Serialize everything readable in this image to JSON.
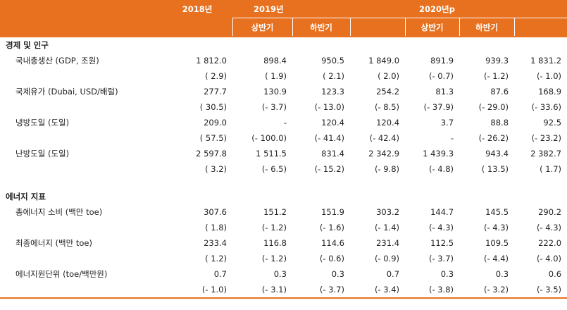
{
  "header": {
    "col_2018": "2018년",
    "col_2019": "2019년",
    "col_2020": "2020년p",
    "sub": [
      "상반기",
      "하반기",
      "상반기",
      "하반기"
    ]
  },
  "sections": [
    {
      "title": "경제 및 인구",
      "rows": [
        {
          "label": "국내총생산 (GDP, 조원)",
          "values": [
            "1 812.0",
            "898.4",
            "950.5",
            "1 849.0",
            "891.9",
            "939.3",
            "1 831.2"
          ],
          "changes": [
            "( 2.9)",
            "( 1.9)",
            "( 2.1)",
            "( 2.0)",
            "(- 0.7)",
            "(- 1.2)",
            "(- 1.0)"
          ]
        },
        {
          "label": "국제유가 (Dubai, USD/배럴)",
          "values": [
            "277.7",
            "130.9",
            "123.3",
            "254.2",
            "81.3",
            "87.6",
            "168.9"
          ],
          "changes": [
            "( 30.5)",
            "(- 3.7)",
            "(- 13.0)",
            "(- 8.5)",
            "(- 37.9)",
            "(- 29.0)",
            "(- 33.6)"
          ]
        },
        {
          "label": "냉방도일 (도일)",
          "values": [
            "209.0",
            "-",
            "120.4",
            "120.4",
            "3.7",
            "88.8",
            "92.5"
          ],
          "changes": [
            "( 57.5)",
            "(- 100.0)",
            "(- 41.4)",
            "(- 42.4)",
            "-",
            "(- 26.2)",
            "(- 23.2)"
          ]
        },
        {
          "label": "난방도일 (도일)",
          "values": [
            "2 597.8",
            "1 511.5",
            "831.4",
            "2 342.9",
            "1 439.3",
            "943.4",
            "2 382.7"
          ],
          "changes": [
            "( 3.2)",
            "(- 6.5)",
            "(- 15.2)",
            "(- 9.8)",
            "(- 4.8)",
            "( 13.5)",
            "( 1.7)"
          ]
        }
      ]
    },
    {
      "title": "에너지 지표",
      "rows": [
        {
          "label": "총에너지 소비 (백만 toe)",
          "values": [
            "307.6",
            "151.2",
            "151.9",
            "303.2",
            "144.7",
            "145.5",
            "290.2"
          ],
          "changes": [
            "( 1.8)",
            "(- 1.2)",
            "(- 1.6)",
            "(- 1.4)",
            "(- 4.3)",
            "(- 4.3)",
            "(- 4.3)"
          ]
        },
        {
          "label": "최종에너지 (백만 toe)",
          "values": [
            "233.4",
            "116.8",
            "114.6",
            "231.4",
            "112.5",
            "109.5",
            "222.0"
          ],
          "changes": [
            "( 1.2)",
            "(- 1.2)",
            "(- 0.6)",
            "(- 0.9)",
            "(- 3.7)",
            "(- 4.4)",
            "(- 4.0)"
          ]
        },
        {
          "label": "에너지원단위 (toe/백만원)",
          "values": [
            "0.7",
            "0.3",
            "0.3",
            "0.7",
            "0.3",
            "0.3",
            "0.6"
          ],
          "changes": [
            "(- 1.0)",
            "(- 3.1)",
            "(- 3.7)",
            "(- 3.4)",
            "(- 3.8)",
            "(- 3.2)",
            "(- 3.5)"
          ]
        }
      ]
    }
  ]
}
